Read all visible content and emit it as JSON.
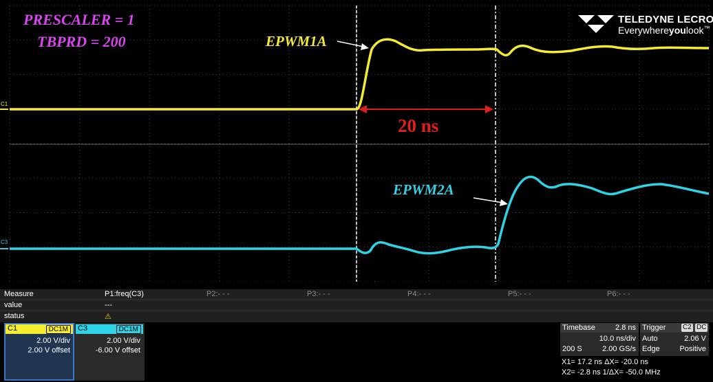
{
  "annotations": {
    "prescaler": "PRESCALER = 1",
    "tbprd": "TBPRD = 200",
    "channel1_label": "EPWM1A",
    "channel3_label": "EPWM2A",
    "delta_t": "20 ns"
  },
  "logo": {
    "brand": "TELEDYNE LECROY",
    "tagline_a": "Everywhere",
    "tagline_b": "you",
    "tagline_c": "look",
    "tm": "™",
    "icon": "teledyne-logo-icon"
  },
  "markers": {
    "c1": "C1",
    "c3": "C3"
  },
  "colors": {
    "ch1": "#f4ec2c",
    "ch3": "#2ed4e6",
    "cursor": "#ffffff",
    "delta": "#e11d1d",
    "annotation": "#d946ef"
  },
  "measure": {
    "header": "Measure",
    "rows": [
      "value",
      "status"
    ],
    "params": [
      "P1:freq(C3)",
      "P2:- - -",
      "P3:- - -",
      "P4:- - -",
      "P5:- - -",
      "P6:- - -"
    ],
    "p1_value": "---",
    "status_icon": "warning-icon"
  },
  "channels": [
    {
      "name": "C1",
      "coupling": "DC1M",
      "vdiv": "2.00 V/div",
      "offset": "2.00 V offset"
    },
    {
      "name": "C3",
      "coupling": "DC1M",
      "vdiv": "2.00 V/div",
      "offset": "-6.00 V offset"
    }
  ],
  "timebase": {
    "label": "Timebase",
    "delay": "2.8 ns",
    "tdiv": "10.0 ns/div",
    "samples": "200 S",
    "rate": "2.00 GS/s"
  },
  "trigger": {
    "label": "Trigger",
    "source": "C2",
    "coupling": "DC",
    "mode": "Auto",
    "level": "2.06 V",
    "type": "Edge",
    "slope": "Positive"
  },
  "cursors": {
    "line1": "X1= 17.2 ns ΔX=    -20.0 ns",
    "line2": "X2= -2.8 ns 1/ΔX= -50.0 MHz"
  }
}
